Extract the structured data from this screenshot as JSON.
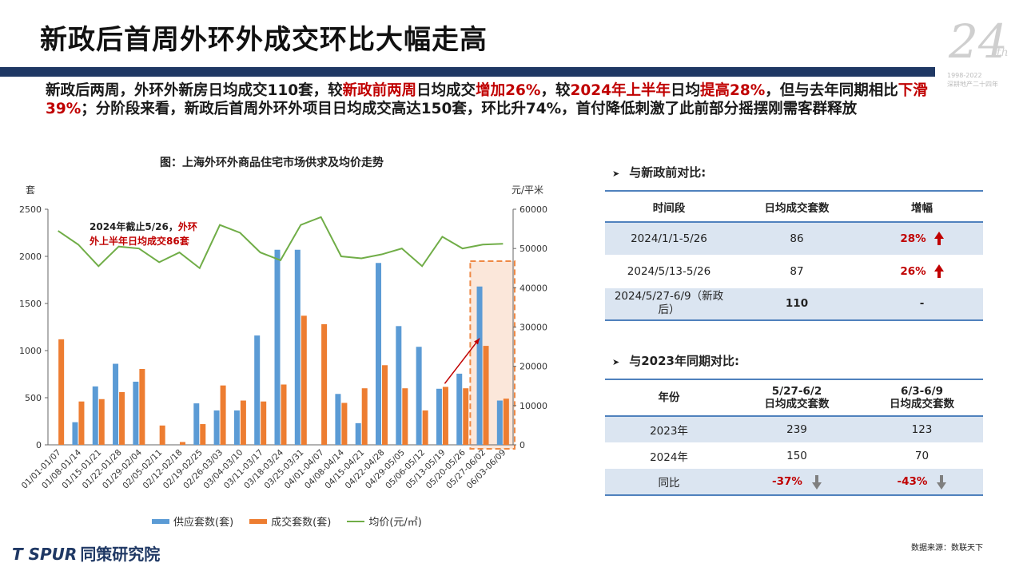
{
  "header": {
    "title": "新政后首周外环外成交环比大幅走高"
  },
  "watermark": {
    "number": "24",
    "suffix": "th",
    "years": "1998-2022",
    "text": "深耕地产二十四年"
  },
  "summary": {
    "p1": "新政后两周，外环外新房日均成交110套，较",
    "p2": "新政前两周",
    "p3": "日均成交",
    "p4": "增加26%",
    "p5": "，较",
    "p6": "2024年上半年",
    "p7": "日均",
    "p8": "提高28%",
    "p9": "，但与去年同期相比",
    "p10": "下滑39%",
    "p11": "；分阶段来看，新政后首周外环外项目日均成交高达150套，环比升74%，首付降低刺激了此前部分摇摆刚需客群释放"
  },
  "chart_title": "图：上海外环外商品住宅市场供求及均价走势",
  "chart_data": {
    "type": "bar",
    "title": "图：上海外环外商品住宅市场供求及均价走势",
    "ylabel_left": "套",
    "ylabel_right": "元/平米",
    "ylim_left": [
      0,
      2500
    ],
    "ylim_right": [
      0,
      60000
    ],
    "yticks_left": [
      0,
      500,
      1000,
      1500,
      2000,
      2500
    ],
    "yticks_right": [
      0,
      10000,
      20000,
      30000,
      40000,
      50000,
      60000
    ],
    "categories": [
      "01/01-01/07",
      "01/08-01/14",
      "01/15-01/21",
      "01/22-01/28",
      "01/29-02/04",
      "02/05-02/11",
      "02/12-02/18",
      "02/19-02/25",
      "02/26-03/03",
      "03/04-03/10",
      "03/11-03/17",
      "03/18-03/24",
      "03/25-03/31",
      "04/01-04/07",
      "04/08-04/14",
      "04/15-04/21",
      "04/22-04/28",
      "04/29-05/05",
      "05/06-05/12",
      "05/13-05/19",
      "05/20-05/26",
      "05/27-06/02",
      "06/03-06/09"
    ],
    "series": [
      {
        "name": "供应套数(套)",
        "type": "bar",
        "color": "#5b9bd5",
        "axis": "left",
        "values": [
          0,
          240,
          620,
          860,
          670,
          0,
          0,
          440,
          365,
          365,
          1160,
          2070,
          2070,
          0,
          540,
          230,
          1930,
          1260,
          1040,
          595,
          755,
          1680,
          470
        ]
      },
      {
        "name": "成交套数(套)",
        "type": "bar",
        "color": "#ed7d31",
        "axis": "left",
        "values": [
          1120,
          460,
          485,
          560,
          805,
          205,
          30,
          220,
          630,
          470,
          460,
          640,
          1370,
          1280,
          445,
          600,
          845,
          600,
          365,
          615,
          600,
          1050,
          490
        ]
      },
      {
        "name": "均价(元/㎡)",
        "type": "line",
        "color": "#70ad47",
        "axis": "right",
        "values": [
          54500,
          51000,
          45500,
          50500,
          50000,
          46500,
          49000,
          45000,
          56000,
          54000,
          49000,
          47000,
          56000,
          58000,
          48000,
          47500,
          48500,
          50000,
          45500,
          53000,
          50000,
          51000,
          51200
        ]
      }
    ],
    "annotation": {
      "text1": "2024年截止5/26，",
      "text2": "外环外上半年日均成交86套",
      "text2_a": "外环",
      "text2_b": "外上半年日均成交86套"
    },
    "highlight_categories": [
      "05/27-06/02",
      "06/03-06/09"
    ],
    "grid": false,
    "legend": "bottom"
  },
  "section1": {
    "heading": "与新政前对比:",
    "headers": [
      "时间段",
      "日均成交套数",
      "增幅"
    ],
    "rows": [
      {
        "period": "2024/1/1-5/26",
        "daily": "86",
        "change": "28%",
        "arrow": "up"
      },
      {
        "period": "2024/5/13-5/26",
        "daily": "87",
        "change": "26%",
        "arrow": "up"
      },
      {
        "period": "2024/5/27-6/9（新政后）",
        "daily": "110",
        "change": "-"
      }
    ]
  },
  "section2": {
    "heading": "与2023年同期对比:",
    "headers": [
      "年份",
      "5/27-6/2",
      "日均成交套数",
      "6/3-6/9",
      "日均成交套数"
    ],
    "rows": [
      {
        "year": "2023年",
        "a": "239",
        "b": "123"
      },
      {
        "year": "2024年",
        "a": "150",
        "b": "70"
      },
      {
        "year": "同比",
        "a": "-37%",
        "b": "-43%"
      }
    ]
  },
  "footer": {
    "brand": "T SPUR",
    "brand_cn": "同策研究院",
    "source": "数据来源：数联天下"
  },
  "colors": {
    "navy": "#1f3864",
    "accent_red": "#c00000",
    "supply": "#5b9bd5",
    "deal": "#ed7d31",
    "price": "#70ad47",
    "table_shade": "#dbe5f1",
    "table_line": "#4f81bd"
  }
}
